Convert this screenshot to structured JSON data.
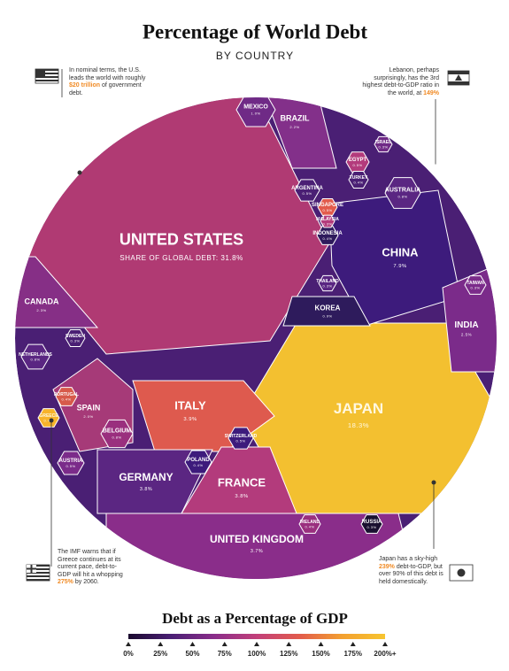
{
  "chart_data": {
    "type": "voronoi-treemap",
    "title": "Percentage of World Debt",
    "subtitle": "BY COUNTRY",
    "categories": [
      "UNITED STATES",
      "JAPAN",
      "CHINA",
      "ITALY",
      "FRANCE",
      "GERMANY",
      "UNITED KINGDOM",
      "INDIA",
      "CANADA",
      "BRAZIL",
      "SPAIN",
      "MEXICO",
      "KOREA",
      "BELGIUM",
      "NETHERLANDS",
      "AUSTRALIA",
      "EGYPT",
      "ARGENTINA",
      "SINGAPORE",
      "SWITZERLAND",
      "AUSTRIA",
      "GREECE",
      "PORTUGAL",
      "POLAND",
      "INDONESIA",
      "IRELAND",
      "RUSSIA",
      "SWEDEN",
      "TURKEY",
      "TAIWAN",
      "THAILAND",
      "ISRAEL",
      "MALAYSIA"
    ],
    "values": [
      31.8,
      18.3,
      7.9,
      3.9,
      3.8,
      3.8,
      3.7,
      2.5,
      2.3,
      2.2,
      2.0,
      1.0,
      0.9,
      0.8,
      0.8,
      0.8,
      0.5,
      0.5,
      0.5,
      0.5,
      0.5,
      0.4,
      0.4,
      0.4,
      0.4,
      0.4,
      0.3,
      0.3,
      0.4,
      0.3,
      0.3,
      0.3,
      0.3
    ],
    "value_labels": [
      "SHARE OF GLOBAL DEBT: 31.8%",
      "18.3%",
      "7.9%",
      "3.9%",
      "3.8%",
      "3.8%",
      "3.7%",
      "2.5%",
      "2.3%",
      "2.2%",
      "2.0%",
      "1.0%",
      "0.9%",
      "0.8%",
      "0.8%",
      "0.8%",
      "0.5%",
      "0.5%",
      "0.5%",
      "0.5%",
      "0.5%",
      "0.4%",
      "0.4%",
      "0.4%",
      "0.4%",
      "0.4%",
      "0.3%",
      "0.3%",
      "0.4%",
      "0.3%",
      "0.3%",
      "0.3%",
      "0.3%"
    ],
    "colors": [
      "#b03a73",
      "#f3c030",
      "#3d1b7c",
      "#de5a4e",
      "#b33b7c",
      "#5b2682",
      "#8a2d8a",
      "#7b2b8a",
      "#862f86",
      "#83308a",
      "#a63a78",
      "#6f2a86",
      "#2e1b5c",
      "#9a2f7e",
      "#5a2682",
      "#5a2682",
      "#b33b7c",
      "#4a1f74",
      "#e25b4c",
      "#3d1b7c",
      "#7b2b8a",
      "#f7b32b",
      "#d75a4a",
      "#3d1b7c",
      "#2e1b5c",
      "#9a2f7e",
      "#1a1030",
      "#4a1f74",
      "#4a1f74",
      "#7b2b8a",
      "#5a2682",
      "#6f2a86",
      "#b33b7c"
    ],
    "annotations": [
      [
        "In nominal terms, the U.S. leads the world with roughly ",
        "$20 trillion",
        " of government debt."
      ],
      [
        "Lebanon, perhaps surprisingly, has the 3rd highest debt-to-GDP ratio in the world, at ",
        "149%"
      ],
      [
        "The IMF warns that if Greece continues at its current pace, debt-to-GDP will hit a whopping ",
        "275%",
        " by 2060."
      ],
      [
        "Japan has a sky-high ",
        "239%",
        " debt-to-GDP, but over 90% of this debt is held domestically."
      ]
    ],
    "colorbar": {
      "title": "Debt as a Percentage of GDP",
      "colors": [
        "#1a0a2e",
        "#4a1f74",
        "#8a2d8a",
        "#c2407a",
        "#e25b4c",
        "#f3a030",
        "#f7c530"
      ],
      "ticks": [
        {
          "value": 0,
          "label": "0%"
        },
        {
          "value": 25,
          "label": "25%"
        },
        {
          "value": 50,
          "label": "50%"
        },
        {
          "value": 75,
          "label": "75%"
        },
        {
          "value": 100,
          "label": "100%"
        },
        {
          "value": 125,
          "label": "125%"
        },
        {
          "value": 150,
          "label": "150%"
        },
        {
          "value": 175,
          "label": "175%"
        },
        {
          "value": 200,
          "label": "200%+"
        }
      ]
    }
  }
}
